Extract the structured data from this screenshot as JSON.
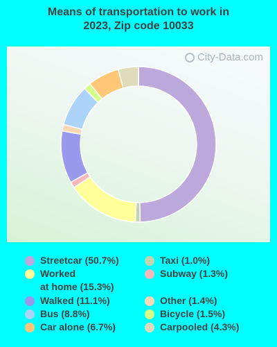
{
  "title_line1": "Means of transportation to work in",
  "title_line2": "2023, Zip code 10033",
  "watermark": "City-Data.com",
  "chart_data": {
    "type": "pie",
    "title": "Means of transportation to work in 2023, Zip code 10033",
    "donut": true,
    "legend_position": "bottom",
    "slices": [
      {
        "label": "Streetcar",
        "value": 50.7,
        "color": "#bca8da",
        "legend": "Streetcar (50.7%)"
      },
      {
        "label": "Taxi",
        "value": 1.0,
        "color": "#c2d5ae",
        "legend": "Taxi (1.0%)"
      },
      {
        "label": "Worked at home",
        "value": 15.3,
        "color": "#ffff99",
        "legend_line1": "Worked",
        "legend_line2": "at home (15.3%)"
      },
      {
        "label": "Subway",
        "value": 1.3,
        "color": "#f4b8bc",
        "legend": "Subway (1.3%)"
      },
      {
        "label": "Walked",
        "value": 11.1,
        "color": "#9999ee",
        "legend": "Walked (11.1%)"
      },
      {
        "label": "Other",
        "value": 1.4,
        "color": "#fcd7b3",
        "legend": "Other (1.4%)"
      },
      {
        "label": "Bus",
        "value": 8.8,
        "color": "#acd3f8",
        "legend": "Bus (8.8%)"
      },
      {
        "label": "Bicycle",
        "value": 1.5,
        "color": "#d6ff88",
        "legend": "Bicycle (1.5%)"
      },
      {
        "label": "Car alone",
        "value": 6.7,
        "color": "#ffc876",
        "legend": "Car alone (6.7%)"
      },
      {
        "label": "Carpooled",
        "value": 4.3,
        "color": "#dfdcbc",
        "legend": "Carpooled (4.3%)"
      }
    ]
  }
}
